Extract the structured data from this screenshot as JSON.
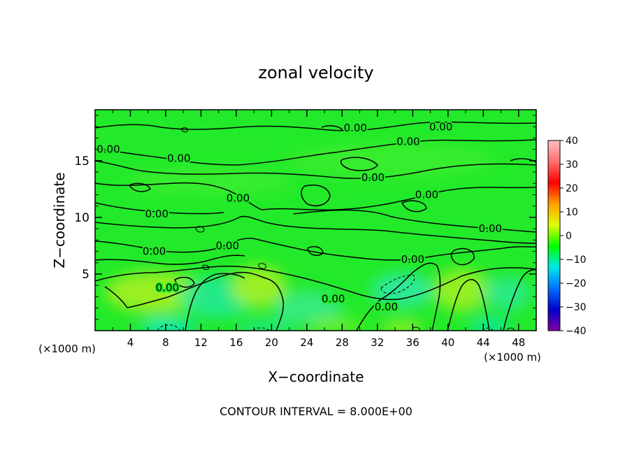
{
  "chart_data": {
    "type": "heatmap",
    "title": "zonal velocity",
    "xlabel": "X−coordinate",
    "ylabel": "Z−coordinate",
    "x_unit_left": "(×1000 m)",
    "x_unit_right": "(×1000 m)",
    "xlim": [
      0,
      50
    ],
    "ylim": [
      0,
      19.5
    ],
    "x_ticks": [
      4,
      8,
      12,
      16,
      20,
      24,
      28,
      32,
      36,
      40,
      44,
      48
    ],
    "y_ticks": [
      5,
      10,
      15
    ],
    "colorbar": {
      "range": [
        -40,
        40
      ],
      "ticks": [
        40,
        30,
        20,
        10,
        0,
        -10,
        -20,
        -30,
        -40
      ],
      "tick_labels": [
        "40",
        "30",
        "20",
        "10",
        "0",
        "−10",
        "−20",
        "−30",
        "−40"
      ],
      "colors": [
        "#8000a0",
        "#0000c8",
        "#0070ff",
        "#00e8e8",
        "#00ff00",
        "#e0ff00",
        "#ffa000",
        "#ff0000",
        "#ff7070",
        "#ffc0c0"
      ]
    },
    "background_color": "#22ea2a",
    "footer": "CONTOUR INTERVAL = 8.000E+00",
    "contour_labels": [
      {
        "text": "0.00",
        "x": 1.5,
        "z": 16.0
      },
      {
        "text": "0.00",
        "x": 9.5,
        "z": 15.2
      },
      {
        "text": "0.00",
        "x": 29.5,
        "z": 17.9
      },
      {
        "text": "0.00",
        "x": 39.2,
        "z": 18.0
      },
      {
        "text": "0.00",
        "x": 35.5,
        "z": 16.7
      },
      {
        "text": "0.00",
        "x": 31.5,
        "z": 13.5
      },
      {
        "text": "0.00",
        "x": 37.6,
        "z": 12.0
      },
      {
        "text": "0.00",
        "x": 16.2,
        "z": 11.7
      },
      {
        "text": "0.00",
        "x": 7.0,
        "z": 10.3
      },
      {
        "text": "0.00",
        "x": 44.8,
        "z": 9.0
      },
      {
        "text": "0.00",
        "x": 6.7,
        "z": 7.0
      },
      {
        "text": "0.00",
        "x": 15.0,
        "z": 7.5
      },
      {
        "text": "0.00",
        "x": 36.0,
        "z": 6.3
      },
      {
        "text": "0.00",
        "x": 8.2,
        "z": 3.8
      },
      {
        "text": "0.00",
        "x": 27.0,
        "z": 2.8
      },
      {
        "text": "0.00",
        "x": 33.0,
        "z": 2.1
      }
    ]
  }
}
